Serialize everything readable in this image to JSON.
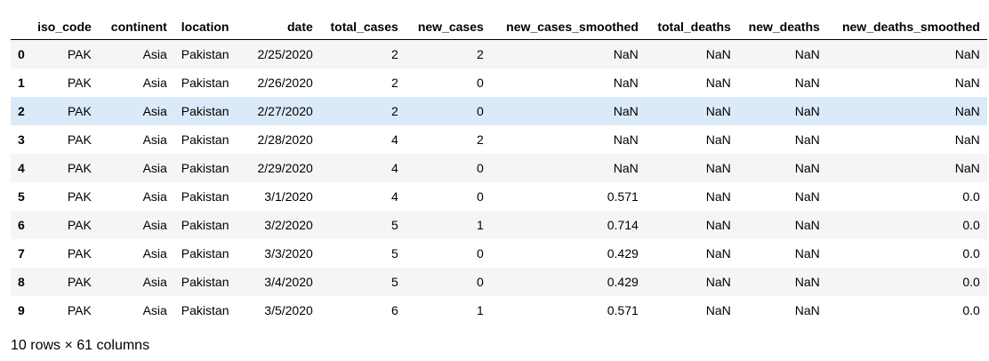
{
  "table": {
    "columns": [
      "iso_code",
      "continent",
      "location",
      "date",
      "total_cases",
      "new_cases",
      "new_cases_smoothed",
      "total_deaths",
      "new_deaths",
      "new_deaths_smoothed"
    ],
    "rows": [
      {
        "index": "0",
        "cells": [
          "PAK",
          "Asia",
          "Pakistan",
          "2/25/2020",
          "2",
          "2",
          "NaN",
          "NaN",
          "NaN",
          "NaN"
        ]
      },
      {
        "index": "1",
        "cells": [
          "PAK",
          "Asia",
          "Pakistan",
          "2/26/2020",
          "2",
          "0",
          "NaN",
          "NaN",
          "NaN",
          "NaN"
        ]
      },
      {
        "index": "2",
        "cells": [
          "PAK",
          "Asia",
          "Pakistan",
          "2/27/2020",
          "2",
          "0",
          "NaN",
          "NaN",
          "NaN",
          "NaN"
        ]
      },
      {
        "index": "3",
        "cells": [
          "PAK",
          "Asia",
          "Pakistan",
          "2/28/2020",
          "4",
          "2",
          "NaN",
          "NaN",
          "NaN",
          "NaN"
        ]
      },
      {
        "index": "4",
        "cells": [
          "PAK",
          "Asia",
          "Pakistan",
          "2/29/2020",
          "4",
          "0",
          "NaN",
          "NaN",
          "NaN",
          "NaN"
        ]
      },
      {
        "index": "5",
        "cells": [
          "PAK",
          "Asia",
          "Pakistan",
          "3/1/2020",
          "4",
          "0",
          "0.571",
          "NaN",
          "NaN",
          "0.0"
        ]
      },
      {
        "index": "6",
        "cells": [
          "PAK",
          "Asia",
          "Pakistan",
          "3/2/2020",
          "5",
          "1",
          "0.714",
          "NaN",
          "NaN",
          "0.0"
        ]
      },
      {
        "index": "7",
        "cells": [
          "PAK",
          "Asia",
          "Pakistan",
          "3/3/2020",
          "5",
          "0",
          "0.429",
          "NaN",
          "NaN",
          "0.0"
        ]
      },
      {
        "index": "8",
        "cells": [
          "PAK",
          "Asia",
          "Pakistan",
          "3/4/2020",
          "5",
          "0",
          "0.429",
          "NaN",
          "NaN",
          "0.0"
        ]
      },
      {
        "index": "9",
        "cells": [
          "PAK",
          "Asia",
          "Pakistan",
          "3/5/2020",
          "6",
          "1",
          "0.571",
          "NaN",
          "NaN",
          "0.0"
        ]
      }
    ],
    "highlighted_row": 2
  },
  "footer": {
    "summary": "10 rows × 61 columns"
  },
  "colors": {
    "row_striped": "#f5f5f5",
    "row_plain": "#ffffff",
    "row_hover": "#dbeaf8",
    "header_rule": "#000000"
  }
}
